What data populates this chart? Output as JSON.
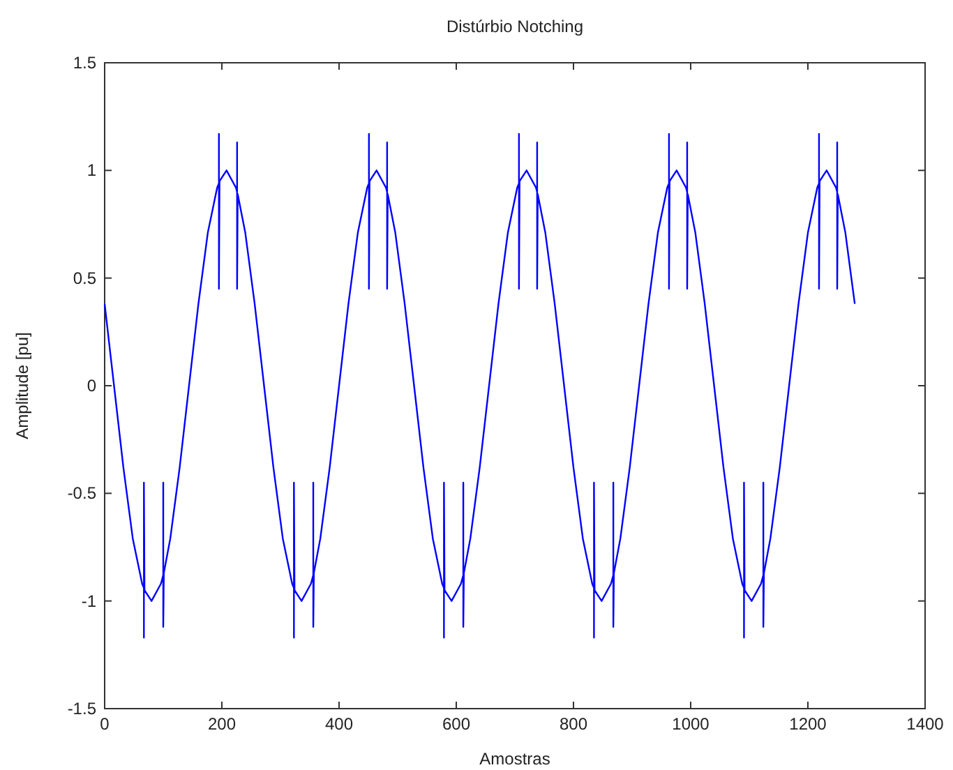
{
  "chart_data": {
    "type": "line",
    "title": "Distúrbio Notching",
    "xlabel": "Amostras",
    "ylabel": "Amplitude [pu]",
    "xlim": [
      0,
      1400
    ],
    "xticks": [
      0,
      200,
      400,
      600,
      800,
      1000,
      1200,
      1400
    ],
    "ylim": [
      -1.5,
      1.5
    ],
    "yticks": [
      -1.5,
      -1,
      -0.5,
      0,
      0.5,
      1,
      1.5
    ],
    "grid": false,
    "marker": "none",
    "line_style": "solid",
    "series": [
      {
        "color": "#0000ff",
        "x": [
          0,
          16,
          32,
          48,
          64,
          67,
          67,
          67,
          68,
          80,
          96,
          100,
          100,
          100,
          101,
          112,
          128,
          144,
          160,
          176,
          192,
          195,
          195,
          195,
          196,
          208,
          224,
          226,
          226,
          226,
          227,
          240,
          256,
          272,
          288,
          304,
          320,
          323,
          323,
          323,
          324,
          336,
          352,
          356,
          356,
          356,
          357,
          368,
          384,
          400,
          416,
          432,
          448,
          451,
          451,
          451,
          452,
          464,
          480,
          482,
          482,
          482,
          483,
          496,
          512,
          528,
          544,
          560,
          576,
          579,
          579,
          579,
          580,
          592,
          608,
          612,
          612,
          612,
          613,
          624,
          640,
          656,
          672,
          688,
          704,
          707,
          707,
          707,
          708,
          720,
          736,
          738,
          738,
          738,
          739,
          752,
          768,
          784,
          800,
          816,
          832,
          835,
          835,
          835,
          836,
          848,
          864,
          868,
          868,
          868,
          869,
          880,
          896,
          912,
          928,
          944,
          960,
          963,
          963,
          963,
          964,
          976,
          992,
          994,
          994,
          994,
          995,
          1008,
          1024,
          1040,
          1056,
          1072,
          1088,
          1091,
          1091,
          1091,
          1092,
          1104,
          1120,
          1124,
          1124,
          1124,
          1125,
          1136,
          1152,
          1168,
          1184,
          1200,
          1216,
          1219,
          1219,
          1219,
          1220,
          1232,
          1248,
          1250,
          1250,
          1250,
          1251,
          1264,
          1280
        ],
        "values": [
          0.38,
          0,
          -0.38,
          -0.71,
          -0.92,
          -0.94,
          -1.17,
          -0.45,
          -0.95,
          -1,
          -0.92,
          -0.88,
          -0.45,
          -1.12,
          -0.87,
          -0.71,
          -0.38,
          0,
          0.38,
          0.71,
          0.92,
          0.94,
          1.17,
          0.45,
          0.95,
          1,
          0.92,
          0.9,
          1.13,
          0.45,
          0.89,
          0.71,
          0.38,
          0,
          -0.38,
          -0.71,
          -0.92,
          -0.94,
          -1.17,
          -0.45,
          -0.95,
          -1,
          -0.92,
          -0.88,
          -0.45,
          -1.12,
          -0.87,
          -0.71,
          -0.38,
          0,
          0.38,
          0.71,
          0.92,
          0.94,
          1.17,
          0.45,
          0.95,
          1,
          0.92,
          0.9,
          1.13,
          0.45,
          0.89,
          0.71,
          0.38,
          0,
          -0.38,
          -0.71,
          -0.92,
          -0.94,
          -1.17,
          -0.45,
          -0.95,
          -1,
          -0.92,
          -0.88,
          -0.45,
          -1.12,
          -0.87,
          -0.71,
          -0.38,
          0,
          0.38,
          0.71,
          0.92,
          0.94,
          1.17,
          0.45,
          0.95,
          1,
          0.92,
          0.9,
          1.13,
          0.45,
          0.89,
          0.71,
          0.38,
          0,
          -0.38,
          -0.71,
          -0.92,
          -0.94,
          -1.17,
          -0.45,
          -0.95,
          -1,
          -0.92,
          -0.88,
          -0.45,
          -1.12,
          -0.87,
          -0.71,
          -0.38,
          0,
          0.38,
          0.71,
          0.92,
          0.94,
          1.17,
          0.45,
          0.95,
          1,
          0.92,
          0.9,
          1.13,
          0.45,
          0.89,
          0.71,
          0.38,
          0,
          -0.38,
          -0.71,
          -0.92,
          -0.94,
          -1.17,
          -0.45,
          -0.95,
          -1,
          -0.92,
          -0.88,
          -0.45,
          -1.12,
          -0.87,
          -0.71,
          -0.38,
          0,
          0.38,
          0.71,
          0.92,
          0.94,
          1.17,
          0.45,
          0.95,
          1,
          0.92,
          0.9,
          1.13,
          0.45,
          0.89,
          0.71,
          0.38
        ]
      }
    ]
  }
}
